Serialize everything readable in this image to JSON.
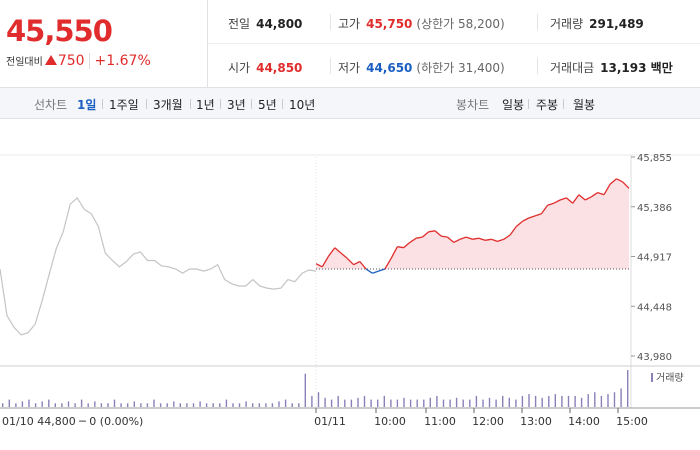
{
  "header": {
    "price": "45,550",
    "change_label": "전일대비",
    "change_value": "750",
    "change_pct": "+1.67%",
    "prev_close_label": "전일",
    "prev_close": "44,800",
    "high_label": "고가",
    "high": "45,750",
    "upper_limit": "(상한가 58,200)",
    "volume_label": "거래량",
    "volume": "291,489",
    "open_label": "시가",
    "open": "44,850",
    "low_label": "저가",
    "low": "44,650",
    "lower_limit": "(하한가 31,400)",
    "amount_label": "거래대금",
    "amount": "13,193 백만"
  },
  "tabs": {
    "line_label": "선차트",
    "line_tabs": [
      "1일",
      "1주일",
      "3개월",
      "1년",
      "3년",
      "5년",
      "10년"
    ],
    "active_index": 0,
    "candle_label": "봉차트",
    "candle_tabs": [
      "일봉",
      "주봉",
      "월봉"
    ]
  },
  "colors": {
    "up": "#e02c2c",
    "down": "#1a5ec2",
    "prev_day": "#c4c4c4",
    "volume": "#8c7fb8"
  },
  "chart_data": {
    "type": "line",
    "title": "",
    "ylim": [
      43980,
      45855
    ],
    "y_ticks": [
      "45,855",
      "45,386",
      "44,917",
      "44,448",
      "43,980"
    ],
    "x_ticks": [
      "01/11",
      "10:00",
      "11:00",
      "12:00",
      "13:00",
      "14:00",
      "15:00"
    ],
    "baseline": 44800,
    "volume_label": "거래량",
    "prev_day_caption": "01/10  44,800 ─ 0 (0.00%)",
    "series": [
      {
        "name": "",
        "session": "01/10",
        "values": [
          44800,
          44360,
          44250,
          44180,
          44200,
          44280,
          44500,
          44750,
          44990,
          45150,
          45410,
          45470,
          45360,
          45320,
          45200,
          44950,
          44880,
          44820,
          44870,
          44940,
          44960,
          44880,
          44880,
          44830,
          44820,
          44800,
          44760,
          44800,
          44800,
          44780,
          44800,
          44840,
          44700,
          44660,
          44640,
          44640,
          44700,
          44640,
          44620,
          44610,
          44620,
          44700,
          44680,
          44760,
          44790,
          44780
        ]
      },
      {
        "name": "",
        "session": "01/11",
        "values": [
          44850,
          44820,
          44920,
          45000,
          44950,
          44900,
          44840,
          44870,
          44800,
          44760,
          44780,
          44800,
          44900,
          45010,
          45000,
          45050,
          45090,
          45100,
          45150,
          45160,
          45110,
          45100,
          45050,
          45080,
          45100,
          45080,
          45090,
          45070,
          45080,
          45060,
          45080,
          45120,
          45200,
          45250,
          45280,
          45300,
          45320,
          45400,
          45420,
          45450,
          45470,
          45420,
          45500,
          45450,
          45480,
          45520,
          45500,
          45600,
          45650,
          45620,
          45560
        ]
      }
    ],
    "volume": [
      0.1,
      0.2,
      0.1,
      0.15,
      0.2,
      0.1,
      0.15,
      0.2,
      0.1,
      0.1,
      0.15,
      0.1,
      0.2,
      0.1,
      0.15,
      0.1,
      0.1,
      0.2,
      0.1,
      0.1,
      0.15,
      0.1,
      0.1,
      0.2,
      0.1,
      0.1,
      0.15,
      0.1,
      0.1,
      0.1,
      0.15,
      0.1,
      0.1,
      0.1,
      0.2,
      0.1,
      0.1,
      0.15,
      0.1,
      0.1,
      0.1,
      0.1,
      0.15,
      0.2,
      0.1,
      0.1,
      0.9,
      0.3,
      0.4,
      0.25,
      0.2,
      0.3,
      0.2,
      0.2,
      0.25,
      0.3,
      0.2,
      0.2,
      0.3,
      0.2,
      0.2,
      0.25,
      0.2,
      0.2,
      0.2,
      0.25,
      0.3,
      0.2,
      0.2,
      0.25,
      0.2,
      0.2,
      0.3,
      0.2,
      0.25,
      0.2,
      0.3,
      0.25,
      0.2,
      0.3,
      0.35,
      0.3,
      0.25,
      0.3,
      0.35,
      0.3,
      0.3,
      0.3,
      0.25,
      0.35,
      0.4,
      0.3,
      0.35,
      0.4,
      0.5,
      1.0
    ]
  }
}
